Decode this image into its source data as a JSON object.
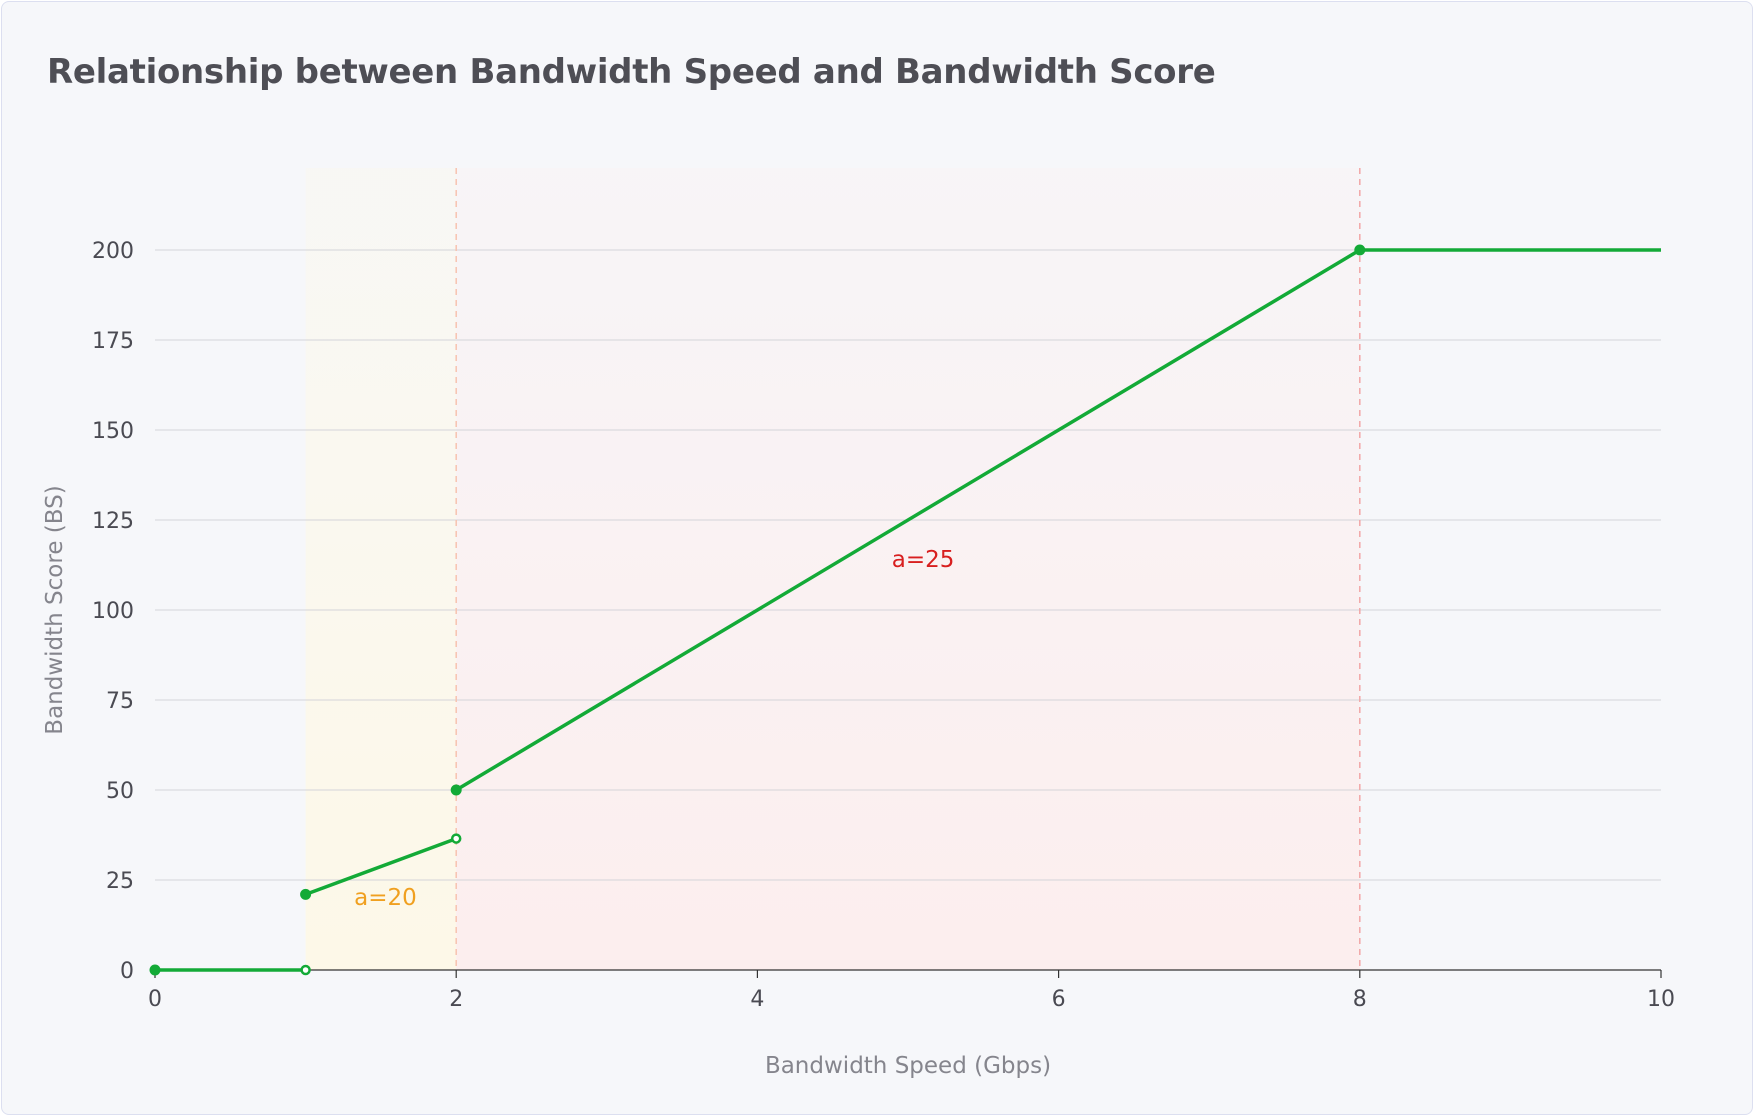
{
  "chart_data": {
    "type": "line",
    "title": "Relationship between Bandwidth Speed and Bandwidth Score",
    "xlabel": "Bandwidth Speed (Gbps)",
    "ylabel": "Bandwidth Score (BS)",
    "xlim": [
      0,
      10
    ],
    "ylim": [
      0,
      200
    ],
    "x_ticks": [
      0,
      2,
      4,
      6,
      8,
      10
    ],
    "y_ticks": [
      0,
      25,
      50,
      75,
      100,
      125,
      150,
      175,
      200
    ],
    "grid": "horizontal",
    "segments": [
      {
        "points": [
          {
            "x": 0,
            "y": 0
          },
          {
            "x": 1,
            "y": 0
          }
        ],
        "start_marker": "filled",
        "end_marker": "open"
      },
      {
        "points": [
          {
            "x": 1,
            "y": 21
          },
          {
            "x": 2,
            "y": 36.5
          }
        ],
        "start_marker": "filled",
        "end_marker": "open"
      },
      {
        "points": [
          {
            "x": 2,
            "y": 50
          },
          {
            "x": 8,
            "y": 200
          },
          {
            "x": 10,
            "y": 200
          }
        ],
        "start_marker": "filled",
        "middle_marker": "filled",
        "end_marker": "none"
      }
    ],
    "shaded_regions": [
      {
        "x_start": 1,
        "x_end": 2,
        "color": "#fdf8e8"
      },
      {
        "x_start": 2,
        "x_end": 8,
        "color": "#fceeee"
      }
    ],
    "reference_lines": [
      {
        "x": 2,
        "color": "#f7c3b0"
      },
      {
        "x": 8,
        "color": "#f2a6a6"
      }
    ],
    "annotations": [
      {
        "text": "a=20",
        "x": 1.53,
        "y": 18,
        "color": "#f0a020"
      },
      {
        "text": "a=25",
        "x": 5.1,
        "y": 112,
        "color": "#d81f1f"
      }
    ],
    "colors": {
      "line": "#13aa37",
      "grid": "#d4d4d9",
      "axis": "#333333",
      "ticks": "#4a4a52"
    }
  }
}
